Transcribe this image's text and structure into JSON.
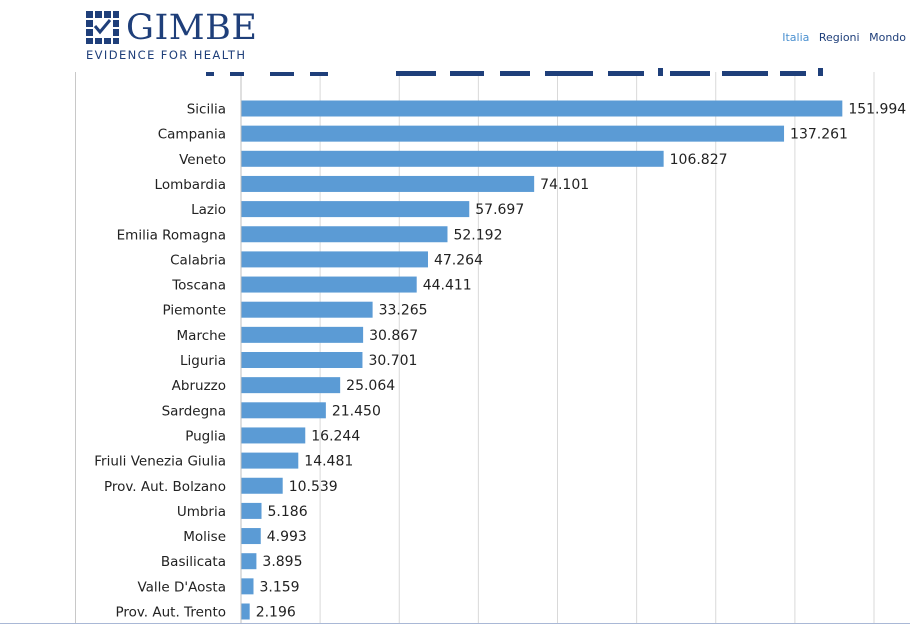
{
  "header": {
    "logo_text": "GIMBE",
    "logo_subtitle": "EVIDENCE FOR HEALTH",
    "nav": [
      {
        "label": "Italia",
        "active": true
      },
      {
        "label": "Regioni",
        "active": false
      },
      {
        "label": "Mondo",
        "active": false
      }
    ]
  },
  "colors": {
    "bar": "#5b9bd5",
    "brand": "#1f3f7a",
    "nav_active": "#4a90d0",
    "grid": "#d9d9d9"
  },
  "chart_data": {
    "type": "bar",
    "orientation": "horizontal",
    "xlim": [
      0,
      160000
    ],
    "grid": true,
    "categories": [
      "Sicilia",
      "Campania",
      "Veneto",
      "Lombardia",
      "Lazio",
      "Emilia Romagna",
      "Calabria",
      "Toscana",
      "Piemonte",
      "Marche",
      "Liguria",
      "Abruzzo",
      "Sardegna",
      "Puglia",
      "Friuli Venezia Giulia",
      "Prov. Aut. Bolzano",
      "Umbria",
      "Molise",
      "Basilicata",
      "Valle D'Aosta",
      "Prov. Aut. Trento"
    ],
    "values": [
      151994,
      137261,
      106827,
      74101,
      57697,
      52192,
      47264,
      44411,
      33265,
      30867,
      30701,
      25064,
      21450,
      16244,
      14481,
      10539,
      5186,
      4993,
      3895,
      3159,
      2196
    ],
    "value_labels": [
      "151.994",
      "137.261",
      "106.827",
      "74.101",
      "57.697",
      "52.192",
      "47.264",
      "44.411",
      "33.265",
      "30.867",
      "30.701",
      "25.064",
      "21.450",
      "16.244",
      "14.481",
      "10.539",
      "5.186",
      "4.993",
      "3.895",
      "3.159",
      "2.196"
    ]
  }
}
